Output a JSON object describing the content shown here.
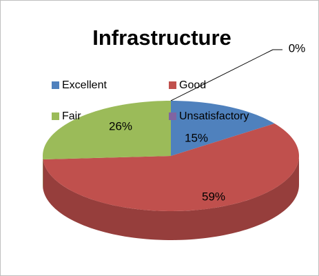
{
  "chart_data": {
    "type": "pie",
    "title": "Infrastructure",
    "categories": [
      "Excellent",
      "Good",
      "Fair",
      "Unsatisfactory"
    ],
    "values": [
      15,
      59,
      26,
      0
    ],
    "value_labels": [
      "15%",
      "59%",
      "26%",
      "0%"
    ],
    "colors": [
      "#4f81bd",
      "#c0504d",
      "#9bbb59",
      "#8064a2"
    ],
    "legend": "top"
  }
}
